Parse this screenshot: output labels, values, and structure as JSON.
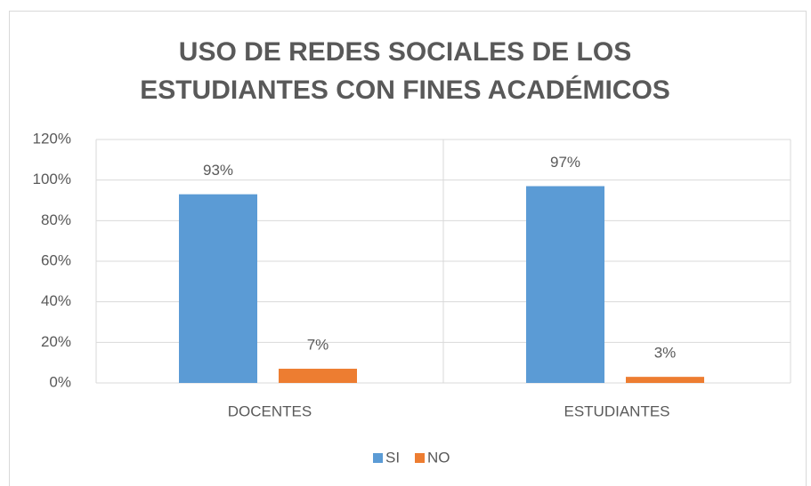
{
  "chart_data": {
    "type": "bar",
    "title": [
      "USO DE REDES SOCIALES DE LOS",
      "ESTUDIANTES CON FINES ACADÉMICOS"
    ],
    "categories": [
      "DOCENTES",
      "ESTUDIANTES"
    ],
    "series": [
      {
        "name": "SI",
        "color": "#5b9bd5",
        "values": [
          93,
          97
        ],
        "value_labels": [
          "93%",
          "97%"
        ]
      },
      {
        "name": "NO",
        "color": "#ed7d31",
        "values": [
          7,
          3
        ],
        "value_labels": [
          "7%",
          "3%"
        ]
      }
    ],
    "ylim": [
      0,
      120
    ],
    "yticks": [
      {
        "value": 0,
        "label": "0%"
      },
      {
        "value": 20,
        "label": "20%"
      },
      {
        "value": 40,
        "label": "40%"
      },
      {
        "value": 60,
        "label": "60%"
      },
      {
        "value": 80,
        "label": "80%"
      },
      {
        "value": 100,
        "label": "100%"
      },
      {
        "value": 120,
        "label": "120%"
      }
    ],
    "grid": true,
    "legend": "bottom"
  }
}
